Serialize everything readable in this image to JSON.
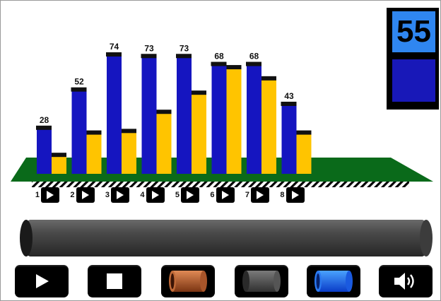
{
  "counter": {
    "value": "55",
    "swatch_color": "#1818b8",
    "panel_color": "#2f86f0"
  },
  "chart_data": {
    "type": "bar",
    "categories": [
      "1",
      "2",
      "3",
      "4",
      "5",
      "6",
      "7",
      "8"
    ],
    "series": [
      {
        "color": "#1515c0",
        "values": [
          28,
          52,
          74,
          73,
          73,
          68,
          68,
          43
        ]
      },
      {
        "color": "#ffc400",
        "values": [
          11,
          25,
          26,
          38,
          50,
          66,
          59,
          25
        ]
      }
    ],
    "data_labels": [
      "28",
      "52",
      "74",
      "73",
      "73",
      "68",
      "68",
      "43"
    ],
    "ylim": [
      0,
      74
    ],
    "floor_color": "#0a6a1a",
    "grid": false,
    "legend": "none"
  },
  "play_buttons": [
    {
      "label": "1"
    },
    {
      "label": "2"
    },
    {
      "label": "3"
    },
    {
      "label": "4"
    },
    {
      "label": "5"
    },
    {
      "label": "6"
    },
    {
      "label": "7"
    },
    {
      "label": "8"
    }
  ],
  "toolbar": {
    "buttons": [
      {
        "name": "play-button",
        "icon": "play-icon"
      },
      {
        "name": "stop-button",
        "icon": "stop-icon"
      },
      {
        "name": "copper-tube-button",
        "icon": "copper-tube-icon"
      },
      {
        "name": "gray-tube-button",
        "icon": "gray-tube-icon"
      },
      {
        "name": "blue-tube-button",
        "icon": "blue-tube-icon"
      },
      {
        "name": "sound-button",
        "icon": "speaker-icon"
      }
    ]
  },
  "tube": {
    "color": "#3a3a3a"
  }
}
